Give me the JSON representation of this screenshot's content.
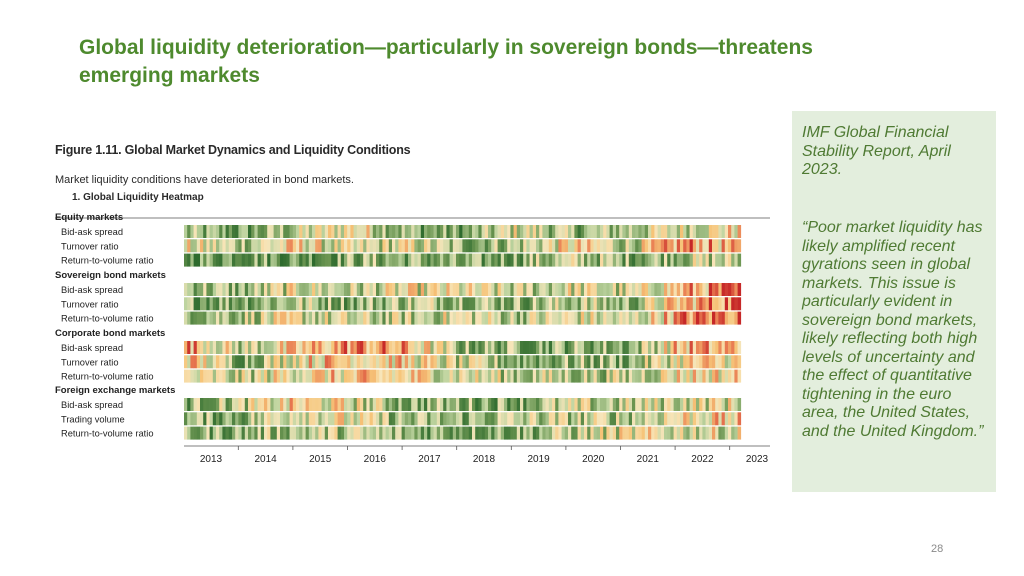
{
  "slide": {
    "title": "Global liquidity deterioration—particularly in sovereign bonds—threatens emerging markets",
    "page_number": "28"
  },
  "figure": {
    "title": "Figure 1.11. Global Market Dynamics and Liquidity Conditions",
    "subtitle": "Market liquidity conditions have deteriorated in bond markets.",
    "panel_title": "1. Global Liquidity Heatmap"
  },
  "sidebar": {
    "source": "IMF Global Financial Stability Report, April 2023.",
    "quote": "“Poor market liquidity has likely amplified recent gyrations seen in global markets. This issue is particularly evident in sovereign bond markets, likely reflecting both high levels of uncertainty and the effect of quantitative tightening in the euro area, the United States, and the United Kingdom.”"
  },
  "colors": {
    "title_green": "#4e8a2e",
    "sidebar_bg": "#e3eedd",
    "sidebar_text": "#4f7a33",
    "heat_low": "#2e6b2e",
    "heat_mid": "#f7e3b5",
    "heat_high": "#c62828"
  },
  "chart_data": {
    "type": "heatmap",
    "x_labels": [
      "2013",
      "2014",
      "2015",
      "2016",
      "2017",
      "2018",
      "2019",
      "2020",
      "2021",
      "2022",
      "2023"
    ],
    "groups": [
      {
        "name": "Equity markets",
        "rows": [
          {
            "name": "Bid-ask spread",
            "values": [
              0.3,
              0.2,
              0.4,
              0.6,
              0.3,
              0.2,
              0.5,
              0.3,
              0.4,
              0.5,
              0.6
            ]
          },
          {
            "name": "Turnover ratio",
            "values": [
              0.5,
              0.4,
              0.6,
              0.4,
              0.5,
              0.3,
              0.4,
              0.6,
              0.4,
              0.8,
              0.6
            ]
          },
          {
            "name": "Return-to-volume ratio",
            "values": [
              0.2,
              0.3,
              0.2,
              0.3,
              0.3,
              0.2,
              0.3,
              0.4,
              0.3,
              0.4,
              0.4
            ]
          }
        ]
      },
      {
        "name": "Sovereign bond markets",
        "rows": [
          {
            "name": "Bid-ask spread",
            "values": [
              0.4,
              0.3,
              0.5,
              0.4,
              0.5,
              0.5,
              0.4,
              0.5,
              0.4,
              0.7,
              0.8
            ]
          },
          {
            "name": "Turnover ratio",
            "values": [
              0.3,
              0.3,
              0.4,
              0.3,
              0.4,
              0.4,
              0.3,
              0.4,
              0.3,
              0.7,
              0.9
            ]
          },
          {
            "name": "Return-to-volume ratio",
            "values": [
              0.4,
              0.4,
              0.5,
              0.4,
              0.4,
              0.5,
              0.4,
              0.5,
              0.4,
              0.8,
              0.9
            ]
          }
        ]
      },
      {
        "name": "Corporate bond markets",
        "rows": [
          {
            "name": "Bid-ask spread",
            "values": [
              0.8,
              0.4,
              0.6,
              0.8,
              0.7,
              0.3,
              0.3,
              0.3,
              0.3,
              0.7,
              0.7
            ]
          },
          {
            "name": "Turnover ratio",
            "values": [
              0.7,
              0.3,
              0.6,
              0.7,
              0.6,
              0.4,
              0.3,
              0.3,
              0.3,
              0.6,
              0.6
            ]
          },
          {
            "name": "Return-to-volume ratio",
            "values": [
              0.5,
              0.4,
              0.6,
              0.6,
              0.6,
              0.5,
              0.4,
              0.4,
              0.4,
              0.6,
              0.6
            ]
          }
        ]
      },
      {
        "name": "Foreign exchange markets",
        "rows": [
          {
            "name": "Bid-ask spread",
            "values": [
              0.3,
              0.4,
              0.6,
              0.5,
              0.3,
              0.3,
              0.3,
              0.4,
              0.4,
              0.5,
              0.5
            ]
          },
          {
            "name": "Trading volume",
            "values": [
              0.3,
              0.3,
              0.6,
              0.5,
              0.3,
              0.3,
              0.4,
              0.4,
              0.4,
              0.6,
              0.6
            ]
          },
          {
            "name": "Return-to-volume ratio",
            "values": [
              0.3,
              0.3,
              0.4,
              0.4,
              0.3,
              0.3,
              0.3,
              0.4,
              0.5,
              0.5,
              0.5
            ]
          }
        ]
      }
    ],
    "value_scale": "0 = high liquidity (green), 1 = low liquidity (red)",
    "legend": "none"
  }
}
